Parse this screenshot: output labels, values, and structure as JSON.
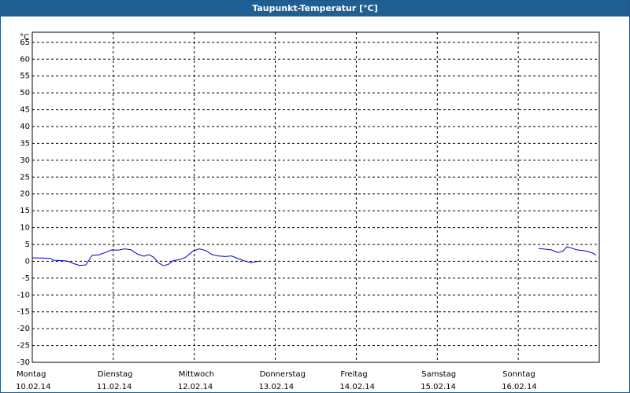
{
  "chart_data": {
    "type": "line",
    "title": "Taupunkt-Temperatur [°C]",
    "ylabel": "°C",
    "ylim": [
      -30,
      68
    ],
    "yticks": [
      -30,
      -25,
      -20,
      -15,
      -10,
      -5,
      0,
      5,
      10,
      15,
      20,
      25,
      30,
      35,
      40,
      45,
      50,
      55,
      60,
      65
    ],
    "xlim": [
      0,
      7
    ],
    "categories": [
      {
        "day": "Montag",
        "date": "10.02.14"
      },
      {
        "day": "Dienstag",
        "date": "11.02.14"
      },
      {
        "day": "Mittwoch",
        "date": "12.02.14"
      },
      {
        "day": "Donnerstag",
        "date": "13.02.14"
      },
      {
        "day": "Freitag",
        "date": "14.02.14"
      },
      {
        "day": "Samstag",
        "date": "15.02.14"
      },
      {
        "day": "Sonntag",
        "date": "16.02.14"
      }
    ],
    "grid": true,
    "line_color": "#0000c8",
    "series": [
      {
        "segments": [
          [
            [
              0.0,
              1.0
            ],
            [
              0.06,
              1.0
            ],
            [
              0.22,
              0.9
            ],
            [
              0.26,
              0.3
            ],
            [
              0.38,
              0.2
            ],
            [
              0.44,
              0.0
            ],
            [
              0.5,
              -0.6
            ],
            [
              0.58,
              -1.2
            ],
            [
              0.66,
              -1.1
            ],
            [
              0.74,
              1.8
            ],
            [
              0.82,
              1.9
            ],
            [
              0.9,
              2.6
            ],
            [
              0.98,
              3.4
            ],
            [
              1.06,
              3.3
            ],
            [
              1.14,
              3.7
            ],
            [
              1.22,
              3.4
            ],
            [
              1.3,
              2.1
            ],
            [
              1.38,
              1.5
            ],
            [
              1.44,
              2.0
            ],
            [
              1.5,
              1.2
            ],
            [
              1.56,
              -0.5
            ],
            [
              1.62,
              -1.3
            ],
            [
              1.68,
              -0.9
            ],
            [
              1.74,
              0.2
            ],
            [
              1.82,
              0.5
            ],
            [
              1.9,
              1.3
            ],
            [
              1.98,
              3.0
            ],
            [
              2.06,
              3.7
            ],
            [
              2.14,
              3.2
            ],
            [
              2.22,
              2.0
            ],
            [
              2.3,
              1.6
            ],
            [
              2.38,
              1.4
            ],
            [
              2.46,
              1.6
            ],
            [
              2.54,
              0.8
            ],
            [
              2.62,
              0.1
            ],
            [
              2.7,
              -0.4
            ],
            [
              2.76,
              -0.1
            ],
            [
              2.82,
              0.1
            ]
          ],
          [
            [
              6.25,
              3.8
            ],
            [
              6.33,
              3.6
            ],
            [
              6.41,
              3.4
            ],
            [
              6.49,
              2.6
            ],
            [
              6.55,
              3.0
            ],
            [
              6.6,
              4.3
            ],
            [
              6.66,
              3.9
            ],
            [
              6.72,
              3.4
            ],
            [
              6.8,
              3.2
            ],
            [
              6.86,
              2.9
            ],
            [
              6.92,
              2.4
            ],
            [
              6.96,
              1.8
            ]
          ]
        ]
      }
    ]
  }
}
